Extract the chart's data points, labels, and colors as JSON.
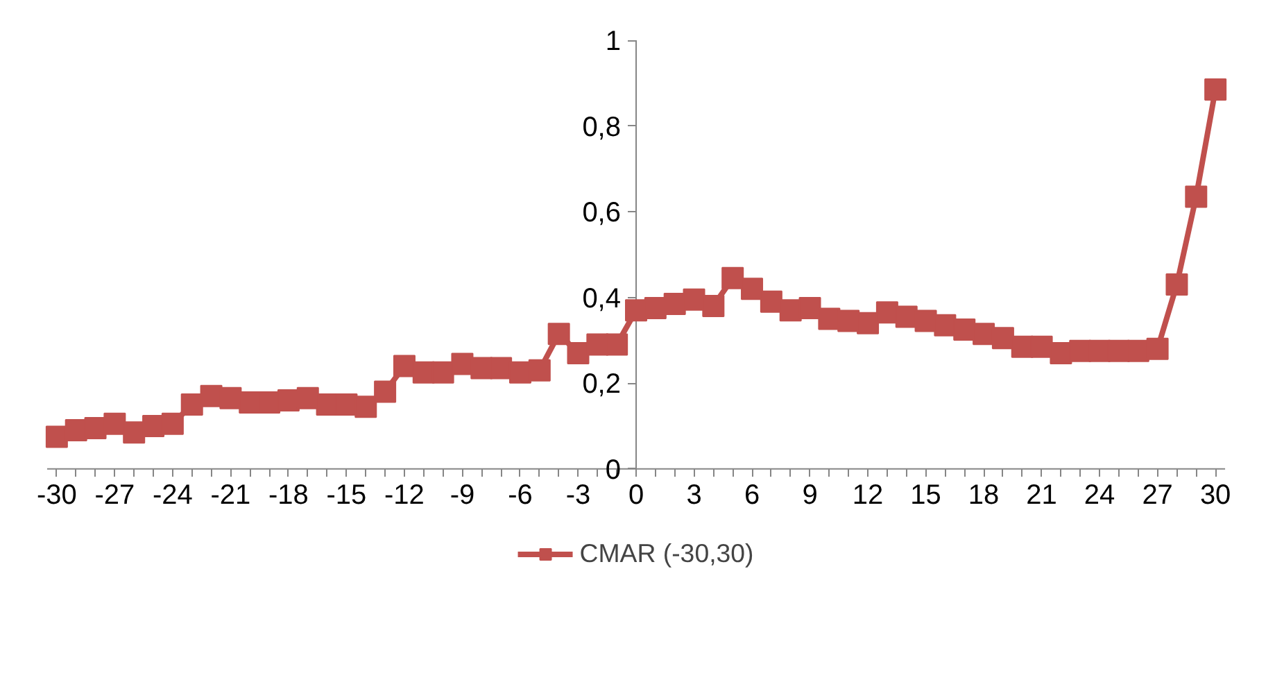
{
  "chart_data": {
    "type": "line",
    "x": [
      -30,
      -29,
      -28,
      -27,
      -26,
      -25,
      -24,
      -23,
      -22,
      -21,
      -20,
      -19,
      -18,
      -17,
      -16,
      -15,
      -14,
      -13,
      -12,
      -11,
      -10,
      -9,
      -8,
      -7,
      -6,
      -5,
      -4,
      -3,
      -2,
      -1,
      0,
      1,
      2,
      3,
      4,
      5,
      6,
      7,
      8,
      9,
      10,
      11,
      12,
      13,
      14,
      15,
      16,
      17,
      18,
      19,
      20,
      21,
      22,
      23,
      24,
      25,
      26,
      27,
      28,
      29,
      30
    ],
    "series": [
      {
        "name": "CMAR (-30,30)",
        "color": "#c0504d",
        "values": [
          0.075,
          0.09,
          0.095,
          0.105,
          0.085,
          0.1,
          0.105,
          0.15,
          0.17,
          0.165,
          0.155,
          0.155,
          0.16,
          0.165,
          0.15,
          0.15,
          0.145,
          0.18,
          0.24,
          0.225,
          0.225,
          0.245,
          0.235,
          0.235,
          0.225,
          0.23,
          0.315,
          0.27,
          0.29,
          0.29,
          0.37,
          0.375,
          0.385,
          0.395,
          0.38,
          0.445,
          0.42,
          0.39,
          0.37,
          0.375,
          0.35,
          0.345,
          0.34,
          0.365,
          0.355,
          0.345,
          0.335,
          0.325,
          0.315,
          0.305,
          0.285,
          0.285,
          0.27,
          0.275,
          0.275,
          0.275,
          0.275,
          0.28,
          0.43,
          0.635,
          0.885
        ]
      }
    ],
    "xlim": [
      -30.5,
      30.5
    ],
    "xticks": [
      -30,
      -27,
      -24,
      -21,
      -18,
      -15,
      -12,
      -9,
      -6,
      -3,
      0,
      3,
      6,
      9,
      12,
      15,
      18,
      21,
      24,
      27,
      30
    ],
    "ylim": [
      0,
      1
    ],
    "yticks": [
      {
        "value": 0,
        "label": "0"
      },
      {
        "value": 0.2,
        "label": "0,2"
      },
      {
        "value": 0.4,
        "label": "0,4"
      },
      {
        "value": 0.6,
        "label": "0,6"
      },
      {
        "value": 0.8,
        "label": "0,8"
      },
      {
        "value": 1,
        "label": "1"
      }
    ],
    "grid": false,
    "legend": "bottom",
    "marker": "square",
    "line_style": "solid"
  }
}
